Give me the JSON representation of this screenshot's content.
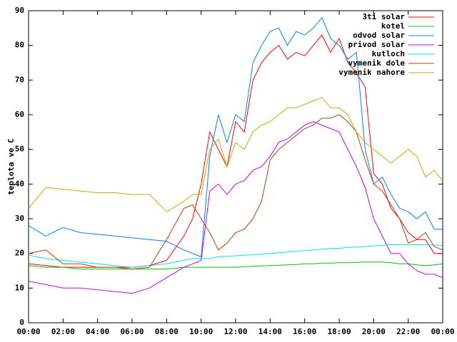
{
  "chart_data": {
    "type": "line",
    "ylabel": "teplota ve C",
    "legend": "top-right",
    "x": [
      0,
      1,
      2,
      3,
      4,
      5,
      6,
      7,
      8,
      9,
      9.5,
      10,
      10.5,
      11,
      11.5,
      12,
      12.5,
      13,
      13.5,
      14,
      14.5,
      15,
      15.5,
      16,
      16.5,
      17,
      17.5,
      18,
      18.5,
      19,
      19.5,
      20,
      20.5,
      21,
      21.5,
      22,
      22.5,
      23,
      23.5,
      24
    ],
    "xlim": [
      0,
      24
    ],
    "xticks": [
      {
        "value": 0,
        "label": "00:00"
      },
      {
        "value": 2,
        "label": "02:00"
      },
      {
        "value": 4,
        "label": "04:00"
      },
      {
        "value": 6,
        "label": "06:00"
      },
      {
        "value": 8,
        "label": "08:00"
      },
      {
        "value": 10,
        "label": "10:00"
      },
      {
        "value": 12,
        "label": "12:00"
      },
      {
        "value": 14,
        "label": "14:00"
      },
      {
        "value": 16,
        "label": "16:00"
      },
      {
        "value": 18,
        "label": "18:00"
      },
      {
        "value": 20,
        "label": "20:00"
      },
      {
        "value": 22,
        "label": "22:00"
      },
      {
        "value": 24,
        "label": "00:00"
      }
    ],
    "ylim": [
      0,
      90
    ],
    "yticks": [
      0,
      10,
      20,
      30,
      40,
      50,
      60,
      70,
      80,
      90
    ],
    "series": [
      {
        "name": "3ti solar",
        "color": "#ff0000",
        "values": [
          17,
          16.5,
          16,
          16,
          16,
          16,
          16,
          16.5,
          18,
          25,
          30,
          40,
          55,
          50,
          45,
          58,
          55,
          70,
          75,
          78,
          80,
          76,
          78,
          77,
          80,
          83,
          78,
          82,
          75,
          72,
          68,
          43,
          40,
          33,
          30,
          26,
          24,
          24,
          20,
          20
        ]
      },
      {
        "name": "kotel",
        "color": "#00c000",
        "values": [
          16.5,
          16,
          16,
          15.5,
          15.5,
          15.5,
          15.5,
          15.5,
          15.5,
          16,
          16,
          16,
          16,
          16,
          16,
          16,
          16.2,
          16.3,
          16.4,
          16.5,
          16.6,
          16.7,
          16.8,
          17,
          17,
          17.2,
          17.2,
          17.3,
          17.3,
          17.4,
          17.5,
          17.5,
          17.5,
          17.3,
          17,
          17,
          16.7,
          16.5,
          16.7,
          17
        ]
      },
      {
        "name": "odvod solar",
        "color": "#0080ff",
        "values": [
          28,
          25,
          27.5,
          26,
          25.5,
          25,
          24.5,
          24,
          23.5,
          21,
          20,
          19,
          48,
          60,
          52,
          60,
          58,
          75,
          80,
          84,
          85,
          80,
          84,
          83,
          85,
          88,
          82,
          80,
          76,
          78,
          50,
          40,
          42,
          37,
          33,
          32,
          30,
          32,
          27,
          27
        ]
      },
      {
        "name": "privod solar",
        "color": "#c000ff",
        "values": [
          12,
          11,
          10,
          10,
          9.5,
          9,
          8.5,
          10,
          13,
          16,
          17,
          18,
          38,
          40,
          37,
          40,
          41,
          44,
          45,
          48,
          52,
          53,
          55,
          57,
          58,
          57,
          56,
          55,
          50,
          45,
          39,
          30,
          25,
          20,
          20,
          17,
          15,
          14,
          14,
          13
        ]
      },
      {
        "name": "kutloch",
        "color": "#00e0e0",
        "values": [
          19.5,
          18.5,
          18,
          17.5,
          17,
          16.5,
          16,
          16.5,
          17,
          18,
          18.5,
          18.5,
          18.5,
          19,
          19.2,
          19.3,
          19.5,
          19.6,
          19.8,
          20,
          20.2,
          20.4,
          20.6,
          20.8,
          21,
          21.2,
          21.4,
          21.5,
          21.7,
          21.8,
          22,
          22.2,
          22.3,
          22.5,
          22.5,
          22.5,
          22.5,
          22.5,
          22.4,
          22.3
        ]
      },
      {
        "name": "vymenik dole",
        "color": "#b04010",
        "values": [
          20,
          21,
          17,
          17,
          16,
          16,
          15.5,
          16,
          24,
          33,
          34,
          30,
          26,
          21,
          23,
          26,
          27,
          30,
          35,
          47,
          50,
          52,
          54,
          56,
          57,
          59,
          59,
          60,
          58,
          55,
          47,
          40,
          38,
          34,
          30,
          23,
          24,
          26,
          22,
          21
        ]
      },
      {
        "name": "vymenik nahore",
        "color": "#c8a800",
        "values": [
          33,
          39,
          38.5,
          38,
          37.5,
          37.5,
          37,
          37,
          32,
          35,
          37,
          37,
          50,
          53,
          45,
          52,
          50,
          55,
          57,
          58,
          60,
          62,
          62,
          63,
          64,
          65,
          62,
          62,
          60,
          55,
          52,
          50,
          48,
          46,
          48,
          50,
          48,
          42,
          44,
          41
        ]
      }
    ]
  }
}
